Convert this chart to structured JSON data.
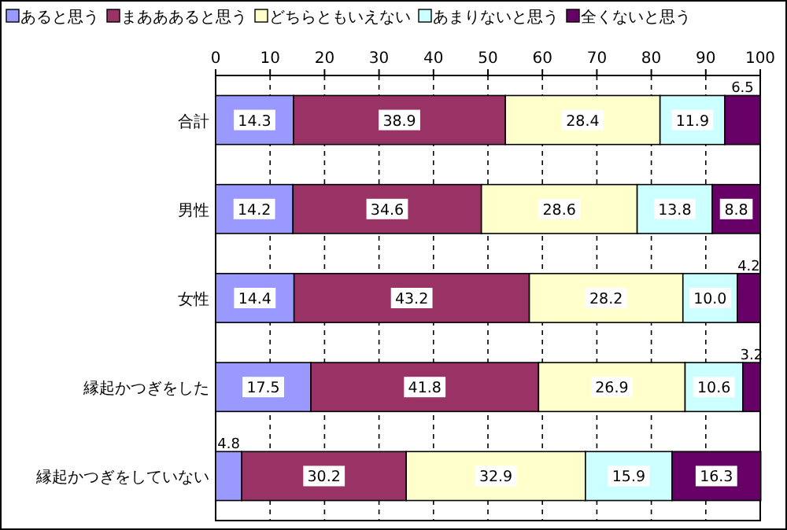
{
  "chart_data": {
    "type": "bar",
    "orientation": "horizontal",
    "stacked": true,
    "grid": "x",
    "legend": "top",
    "categories": [
      "合計",
      "男性",
      "女性",
      "縁起かつぎをした",
      "縁起かつぎをしていない"
    ],
    "xlim": [
      0,
      100
    ],
    "xticks": [
      0,
      10,
      20,
      30,
      40,
      50,
      60,
      70,
      80,
      90,
      100
    ],
    "series": [
      {
        "name": "あると思う",
        "color": "#9999ff",
        "values": [
          14.3,
          14.2,
          14.4,
          17.5,
          4.8
        ],
        "value_labels": [
          "14.3",
          "14.2",
          "14.4",
          "17.5",
          "4.8"
        ]
      },
      {
        "name": "まあああると思う",
        "color": "#993366",
        "values": [
          38.9,
          34.6,
          43.2,
          41.8,
          30.2
        ],
        "value_labels": [
          "38.9",
          "34.6",
          "43.2",
          "41.8",
          "30.2"
        ]
      },
      {
        "name": "どちらともいえない",
        "color": "#ffffcc",
        "values": [
          28.4,
          28.6,
          28.2,
          26.9,
          32.9
        ],
        "value_labels": [
          "28.4",
          "28.6",
          "28.2",
          "26.9",
          "32.9"
        ]
      },
      {
        "name": "あまりないと思う",
        "color": "#ccffff",
        "values": [
          11.9,
          13.8,
          10.0,
          10.6,
          15.9
        ],
        "value_labels": [
          "11.9",
          "13.8",
          "10.0",
          "10.6",
          "15.9"
        ]
      },
      {
        "name": "全くないと思う",
        "color": "#660066",
        "values": [
          6.5,
          8.8,
          4.2,
          3.2,
          16.3
        ],
        "value_labels": [
          "6.5",
          "8.8",
          "4.2",
          "3.2",
          "16.3"
        ]
      }
    ]
  }
}
